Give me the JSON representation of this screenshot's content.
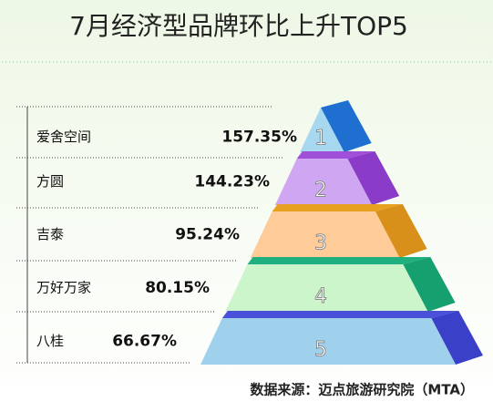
{
  "title": "7月经济型品牌环比上升TOP5",
  "items": [
    {
      "rank": "1",
      "name": "爱舍空间",
      "change": "157.35%"
    },
    {
      "rank": "2",
      "name": "方圆",
      "change": "144.23%"
    },
    {
      "rank": "3",
      "name": "吉泰",
      "change": "95.24%"
    },
    {
      "rank": "4",
      "name": "万好万家",
      "change": "80.15%"
    },
    {
      "rank": "5",
      "name": "八桂",
      "change": "66.67%"
    }
  ],
  "source": "数据来源：迈点旅游研究院（MTA）"
}
